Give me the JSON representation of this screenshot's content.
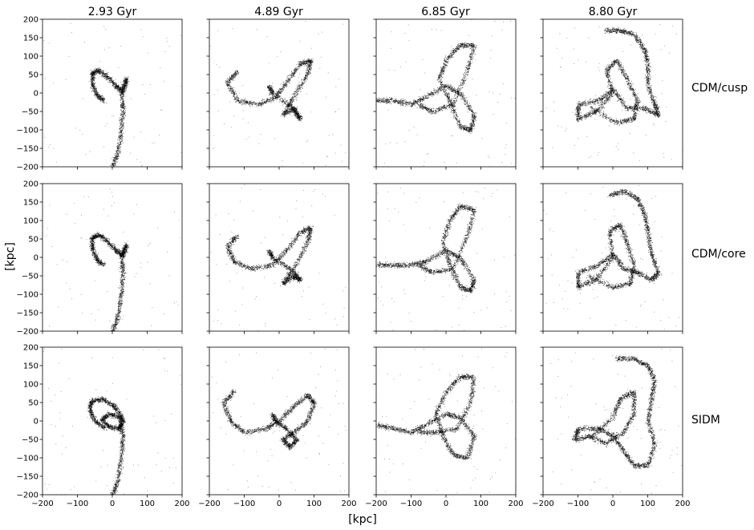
{
  "figure": {
    "xlabel": "[kpc]",
    "ylabel": "[kpc]",
    "column_titles": [
      "2.93 Gyr",
      "4.89 Gyr",
      "6.85 Gyr",
      "8.80 Gyr"
    ],
    "row_labels": [
      "CDM/cusp",
      "CDM/core",
      "SIDM"
    ]
  },
  "chart_data": {
    "type": "scatter",
    "description_free": true,
    "xlim": [
      -200,
      200
    ],
    "ylim": [
      -200,
      200
    ],
    "xticks": [
      -200,
      -100,
      0,
      100,
      200
    ],
    "xtick_labels": [
      "−200",
      "−100",
      "0",
      "100",
      "200"
    ],
    "yticks": [
      200,
      150,
      100,
      50,
      0,
      -50,
      -100,
      -150,
      -200
    ],
    "ytick_labels": [
      "200",
      "150",
      "100",
      "50",
      "0",
      "−50",
      "−100",
      "−150",
      "−200"
    ],
    "grid": false,
    "point_color": "#000000",
    "panels": [
      {
        "row": 0,
        "col": 0,
        "time": "2.93 Gyr",
        "model": "CDM/cusp",
        "knots": [
          [
            -25,
            -20
          ],
          [
            -45,
            -5
          ],
          [
            -58,
            25
          ],
          [
            -58,
            55
          ],
          [
            -40,
            62
          ],
          [
            -15,
            45
          ],
          [
            10,
            20
          ],
          [
            30,
            5
          ],
          [
            40,
            40
          ],
          [
            25,
            5
          ],
          [
            30,
            -40
          ],
          [
            25,
            -100
          ],
          [
            15,
            -160
          ],
          [
            0,
            -200
          ]
        ]
      },
      {
        "row": 0,
        "col": 1,
        "time": "4.89 Gyr",
        "model": "CDM/cusp",
        "knots": [
          [
            -120,
            60
          ],
          [
            -150,
            30
          ],
          [
            -120,
            -20
          ],
          [
            -60,
            -30
          ],
          [
            -10,
            -10
          ],
          [
            20,
            30
          ],
          [
            60,
            80
          ],
          [
            90,
            90
          ],
          [
            80,
            50
          ],
          [
            40,
            -10
          ],
          [
            10,
            -60
          ],
          [
            40,
            -40
          ],
          [
            60,
            -70
          ],
          [
            40,
            -40
          ],
          [
            -20,
            0
          ],
          [
            -30,
            20
          ]
        ]
      },
      {
        "row": 0,
        "col": 2,
        "time": "6.85 Gyr",
        "model": "CDM/cusp",
        "knots": [
          [
            -200,
            -20
          ],
          [
            -150,
            -20
          ],
          [
            -100,
            -30
          ],
          [
            -60,
            -10
          ],
          [
            0,
            20
          ],
          [
            40,
            0
          ],
          [
            80,
            -60
          ],
          [
            70,
            -100
          ],
          [
            40,
            -90
          ],
          [
            10,
            -20
          ],
          [
            -20,
            40
          ],
          [
            0,
            90
          ],
          [
            40,
            130
          ],
          [
            80,
            130
          ],
          [
            60,
            60
          ],
          [
            20,
            -30
          ],
          [
            -40,
            -50
          ],
          [
            -80,
            -30
          ]
        ]
      },
      {
        "row": 0,
        "col": 3,
        "time": "8.80 Gyr",
        "model": "CDM/cusp",
        "knots": [
          [
            -20,
            170
          ],
          [
            20,
            170
          ],
          [
            60,
            160
          ],
          [
            90,
            120
          ],
          [
            100,
            80
          ],
          [
            100,
            20
          ],
          [
            120,
            -30
          ],
          [
            130,
            -60
          ],
          [
            90,
            -40
          ],
          [
            40,
            -40
          ],
          [
            0,
            10
          ],
          [
            -40,
            -20
          ],
          [
            -100,
            -30
          ],
          [
            -100,
            -70
          ],
          [
            -50,
            -50
          ],
          [
            0,
            0
          ],
          [
            -20,
            60
          ],
          [
            10,
            90
          ],
          [
            40,
            40
          ],
          [
            70,
            -20
          ],
          [
            60,
            -70
          ],
          [
            10,
            -80
          ],
          [
            -60,
            -40
          ]
        ]
      },
      {
        "row": 1,
        "col": 0,
        "time": "2.93 Gyr",
        "model": "CDM/core",
        "knots": [
          [
            -25,
            -20
          ],
          [
            -45,
            -5
          ],
          [
            -58,
            25
          ],
          [
            -58,
            55
          ],
          [
            -40,
            62
          ],
          [
            -15,
            45
          ],
          [
            10,
            20
          ],
          [
            30,
            5
          ],
          [
            40,
            35
          ],
          [
            25,
            5
          ],
          [
            30,
            -40
          ],
          [
            25,
            -100
          ],
          [
            15,
            -160
          ],
          [
            0,
            -200
          ]
        ]
      },
      {
        "row": 1,
        "col": 1,
        "time": "4.89 Gyr",
        "model": "CDM/core",
        "knots": [
          [
            -120,
            60
          ],
          [
            -150,
            30
          ],
          [
            -130,
            -10
          ],
          [
            -80,
            -30
          ],
          [
            -20,
            -20
          ],
          [
            20,
            20
          ],
          [
            60,
            70
          ],
          [
            90,
            80
          ],
          [
            80,
            40
          ],
          [
            40,
            -30
          ],
          [
            10,
            -70
          ],
          [
            40,
            -50
          ],
          [
            60,
            -60
          ],
          [
            30,
            -30
          ],
          [
            -20,
            0
          ],
          [
            -30,
            20
          ]
        ]
      },
      {
        "row": 1,
        "col": 2,
        "time": "6.85 Gyr",
        "model": "CDM/core",
        "knots": [
          [
            -200,
            -20
          ],
          [
            -150,
            -20
          ],
          [
            -100,
            -20
          ],
          [
            -60,
            -10
          ],
          [
            0,
            20
          ],
          [
            40,
            0
          ],
          [
            80,
            -60
          ],
          [
            70,
            -90
          ],
          [
            40,
            -80
          ],
          [
            10,
            -20
          ],
          [
            -10,
            40
          ],
          [
            10,
            100
          ],
          [
            40,
            140
          ],
          [
            80,
            130
          ],
          [
            60,
            60
          ],
          [
            20,
            -30
          ],
          [
            -40,
            -40
          ],
          [
            -80,
            -20
          ]
        ]
      },
      {
        "row": 1,
        "col": 3,
        "time": "8.80 Gyr",
        "model": "CDM/core",
        "knots": [
          [
            -10,
            170
          ],
          [
            30,
            180
          ],
          [
            70,
            160
          ],
          [
            90,
            120
          ],
          [
            100,
            70
          ],
          [
            110,
            10
          ],
          [
            130,
            -40
          ],
          [
            110,
            -60
          ],
          [
            70,
            -40
          ],
          [
            30,
            -30
          ],
          [
            0,
            10
          ],
          [
            -40,
            -20
          ],
          [
            -100,
            -40
          ],
          [
            -100,
            -80
          ],
          [
            -50,
            -60
          ],
          [
            0,
            0
          ],
          [
            -10,
            70
          ],
          [
            20,
            90
          ],
          [
            40,
            40
          ],
          [
            60,
            -20
          ],
          [
            50,
            -70
          ],
          [
            0,
            -80
          ],
          [
            -70,
            -50
          ]
        ]
      },
      {
        "row": 2,
        "col": 0,
        "time": "2.93 Gyr",
        "model": "SIDM",
        "knots": [
          [
            -20,
            -20
          ],
          [
            -50,
            0
          ],
          [
            -65,
            30
          ],
          [
            -60,
            55
          ],
          [
            -30,
            60
          ],
          [
            0,
            45
          ],
          [
            20,
            20
          ],
          [
            30,
            0
          ],
          [
            20,
            -20
          ],
          [
            -10,
            -15
          ],
          [
            -30,
            5
          ],
          [
            -10,
            20
          ],
          [
            20,
            10
          ],
          [
            30,
            -40
          ],
          [
            25,
            -100
          ],
          [
            15,
            -160
          ],
          [
            0,
            -200
          ]
        ]
      },
      {
        "row": 2,
        "col": 1,
        "time": "4.89 Gyr",
        "model": "SIDM",
        "knots": [
          [
            -130,
            80
          ],
          [
            -160,
            50
          ],
          [
            -140,
            0
          ],
          [
            -100,
            -30
          ],
          [
            -40,
            -20
          ],
          [
            0,
            0
          ],
          [
            40,
            40
          ],
          [
            80,
            70
          ],
          [
            100,
            50
          ],
          [
            80,
            0
          ],
          [
            40,
            -30
          ],
          [
            10,
            -50
          ],
          [
            30,
            -70
          ],
          [
            50,
            -50
          ],
          [
            20,
            -20
          ],
          [
            -10,
            0
          ],
          [
            -20,
            20
          ]
        ]
      },
      {
        "row": 2,
        "col": 2,
        "time": "6.85 Gyr",
        "model": "SIDM",
        "knots": [
          [
            -200,
            -10
          ],
          [
            -150,
            -20
          ],
          [
            -100,
            -30
          ],
          [
            -60,
            -10
          ],
          [
            0,
            20
          ],
          [
            40,
            10
          ],
          [
            80,
            -40
          ],
          [
            60,
            -100
          ],
          [
            20,
            -90
          ],
          [
            -10,
            -40
          ],
          [
            -30,
            20
          ],
          [
            0,
            80
          ],
          [
            40,
            120
          ],
          [
            80,
            120
          ],
          [
            70,
            50
          ],
          [
            30,
            -20
          ],
          [
            -30,
            -30
          ],
          [
            -80,
            -30
          ]
        ]
      },
      {
        "row": 2,
        "col": 3,
        "time": "8.80 Gyr",
        "model": "SIDM",
        "knots": [
          [
            10,
            170
          ],
          [
            60,
            170
          ],
          [
            100,
            150
          ],
          [
            120,
            110
          ],
          [
            110,
            60
          ],
          [
            100,
            0
          ],
          [
            120,
            -60
          ],
          [
            100,
            -120
          ],
          [
            60,
            -120
          ],
          [
            30,
            -80
          ],
          [
            0,
            -40
          ],
          [
            -40,
            -20
          ],
          [
            -100,
            -20
          ],
          [
            -110,
            -50
          ],
          [
            -60,
            -40
          ],
          [
            0,
            10
          ],
          [
            20,
            60
          ],
          [
            60,
            80
          ],
          [
            60,
            20
          ],
          [
            30,
            -30
          ],
          [
            -20,
            -60
          ],
          [
            -70,
            -40
          ]
        ]
      }
    ]
  }
}
